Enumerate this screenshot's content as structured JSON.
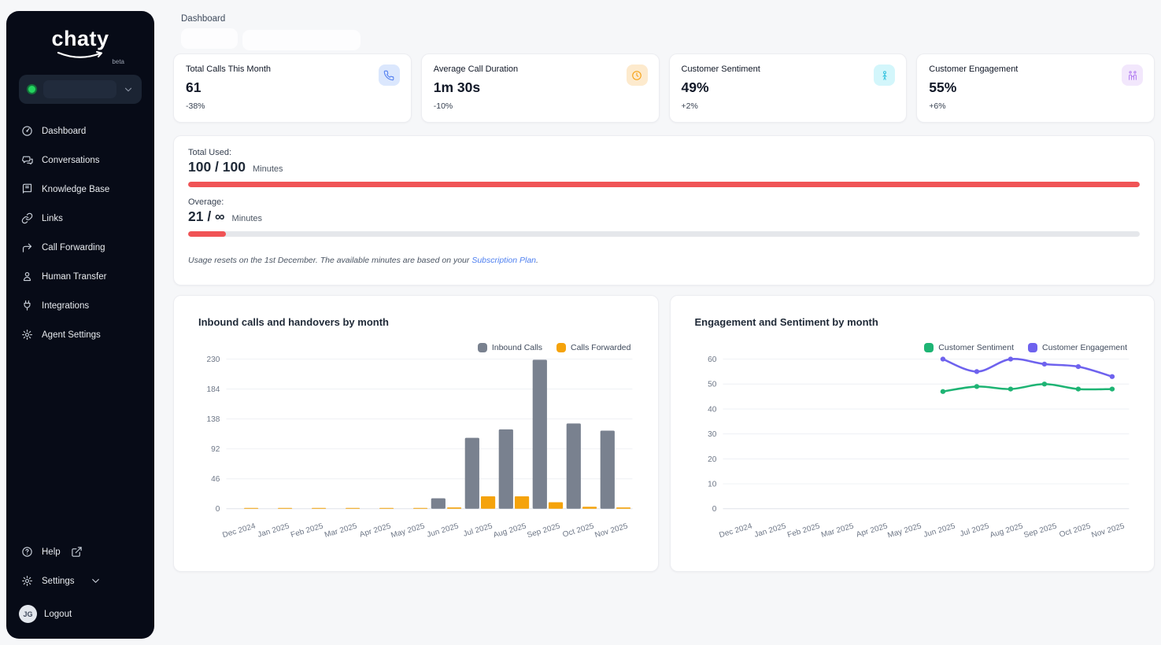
{
  "app": {
    "name": "chaty",
    "badge": "beta"
  },
  "sidebar": {
    "workspace": {
      "status": "online",
      "status_color": "#24d35f"
    },
    "items": [
      {
        "label": "Dashboard",
        "icon": "gauge-icon"
      },
      {
        "label": "Conversations",
        "icon": "chat-bubbles-icon"
      },
      {
        "label": "Knowledge Base",
        "icon": "book-icon"
      },
      {
        "label": "Links",
        "icon": "link-icon"
      },
      {
        "label": "Call Forwarding",
        "icon": "arrow-forward-icon"
      },
      {
        "label": "Human Transfer",
        "icon": "person-icon"
      },
      {
        "label": "Integrations",
        "icon": "plug-icon"
      },
      {
        "label": "Agent Settings",
        "icon": "gear-icon"
      }
    ],
    "footer": {
      "help": "Help",
      "settings": "Settings",
      "logout": "Logout",
      "avatar_initials": "JG"
    }
  },
  "header": {
    "title": "Dashboard"
  },
  "stats": [
    {
      "label": "Total Calls This Month",
      "value": "61",
      "delta": "-38%",
      "icon": "phone-icon",
      "icon_color": "#4e7cf0",
      "chip_bg": "#dbe7fd"
    },
    {
      "label": "Average Call Duration",
      "value": "1m 30s",
      "delta": "-10%",
      "icon": "clock-icon",
      "icon_color": "#f59e0b",
      "chip_bg": "#fdeacd"
    },
    {
      "label": "Customer Sentiment",
      "value": "49%",
      "delta": "+2%",
      "icon": "person-icon",
      "icon_color": "#35c3df",
      "chip_bg": "#d3f6fb"
    },
    {
      "label": "Customer Engagement",
      "value": "55%",
      "delta": "+6%",
      "icon": "people-icon",
      "icon_color": "#b17cf0",
      "chip_bg": "#f2e7fc"
    }
  ],
  "usage": {
    "total_label": "Total Used:",
    "total_value": "100 / 100",
    "total_unit": "Minutes",
    "total_pct": 100,
    "overage_label": "Overage:",
    "overage_value": "21 / ∞",
    "overage_unit": "Minutes",
    "overage_pct": 4,
    "bar_color": "#f05355",
    "track_color": "#e5e7eb",
    "note_prefix": "Usage resets on the 1st December. The available minutes are based on your ",
    "note_link": "Subscription Plan",
    "note_suffix": ".",
    "link_color": "#4f80f0"
  },
  "chart_data": [
    {
      "type": "bar",
      "title": "Inbound calls and handovers by month",
      "categories": [
        "Dec 2024",
        "Jan 2025",
        "Feb 2025",
        "Mar 2025",
        "Apr 2025",
        "May 2025",
        "Jun 2025",
        "Jul 2025",
        "Aug 2025",
        "Sep 2025",
        "Oct 2025",
        "Nov 2025"
      ],
      "series": [
        {
          "name": "Inbound Calls",
          "color": "#79818f",
          "values": [
            0,
            0,
            0,
            0,
            0,
            0,
            16,
            109,
            122,
            229,
            131,
            120
          ]
        },
        {
          "name": "Calls Forwarded",
          "color": "#f5a30b",
          "values": [
            1,
            1,
            1,
            1,
            1,
            1,
            2,
            19,
            19,
            10,
            3,
            2
          ]
        }
      ],
      "yticks": [
        0,
        46,
        92,
        138,
        184,
        230
      ],
      "ylim": [
        0,
        230
      ],
      "xlabel": "",
      "ylabel": "",
      "grid": true,
      "legend_position": "top-right"
    },
    {
      "type": "line",
      "title": "Engagement and Sentiment by month",
      "categories": [
        "Dec 2024",
        "Jan 2025",
        "Feb 2025",
        "Mar 2025",
        "Apr 2025",
        "May 2025",
        "Jun 2025",
        "Jul 2025",
        "Aug 2025",
        "Sep 2025",
        "Oct 2025",
        "Nov 2025"
      ],
      "series": [
        {
          "name": "Customer Sentiment",
          "color": "#1eb474",
          "values": [
            null,
            null,
            null,
            null,
            null,
            null,
            47,
            49,
            48,
            50,
            48,
            48
          ]
        },
        {
          "name": "Customer Engagement",
          "color": "#6e62ee",
          "values": [
            null,
            null,
            null,
            null,
            null,
            null,
            60,
            55,
            60,
            58,
            57,
            53
          ]
        }
      ],
      "yticks": [
        0,
        10,
        20,
        30,
        40,
        50,
        60
      ],
      "ylim": [
        0,
        60
      ],
      "xlabel": "",
      "ylabel": "",
      "grid": true,
      "legend_position": "top-right"
    }
  ]
}
